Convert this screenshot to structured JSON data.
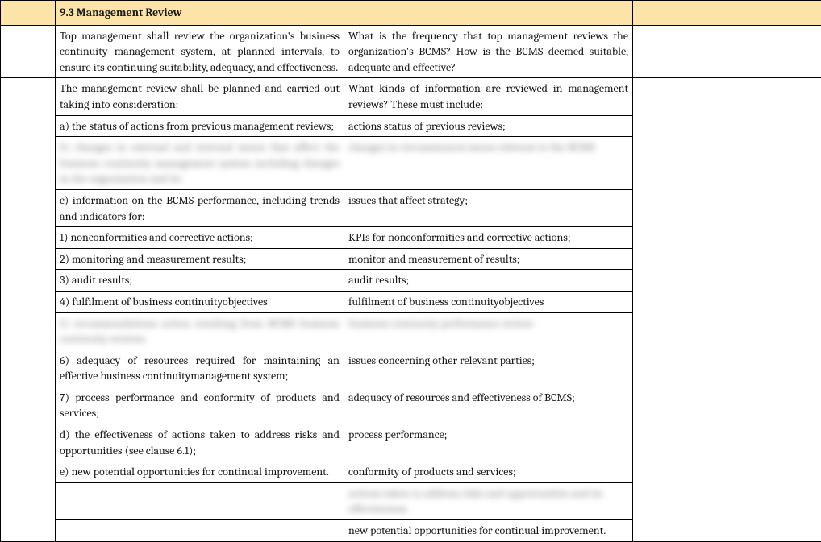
{
  "header": {
    "title": "9.3 Management Review"
  },
  "rows": [
    {
      "left": "Top management shall review the organization's business continuity management system, at planned intervals, to ensure its continuing suitability, adequacy, and effectiveness.",
      "right": "What is the frequency that top management reviews the organization's BCMS?  How is the BCMS deemed suitable, adequate and effective?",
      "leftJustify": true,
      "rightJustify": true
    },
    {
      "left": "The management review shall be planned and carried out taking into consideration:",
      "right": "What kinds of information are reviewed in management reviews? These must include:",
      "leftJustify": true,
      "rightJustify": true,
      "groupStart": true
    },
    {
      "left": "a) the status of actions from previous management reviews;",
      "right": "actions status of previous reviews;",
      "leftJustify": true
    },
    {
      "left": "b) changes in external and internal issues that affect the business continuity management system including changes in the organization and its",
      "right": "changes in circumstances issues relevant to the BCMS",
      "leftJustify": true,
      "blurred": true
    },
    {
      "left": "c) information on the BCMS performance, including trends and indicators for:",
      "right": "issues that affect strategy;",
      "leftJustify": true
    },
    {
      "left": "1) nonconformities and corrective actions;",
      "right": "KPIs for nonconformities and corrective actions;"
    },
    {
      "left": "2) monitoring and measurement results;",
      "right": "monitor and measurement of results;"
    },
    {
      "left": "3) audit results;",
      "right": "audit results;"
    },
    {
      "left": "4) fulfilment of business continuityobjectives",
      "right": "fulfilment of business continuityobjectives"
    },
    {
      "left": "5) recommendations action resulting from BCMS business continuity reviews",
      "right": "business continuity performance review",
      "leftJustify": true,
      "blurred": true
    },
    {
      "left": "6) adequacy of resources required for maintaining an effective business continuitymanagement system;",
      "right": "issues concerning other relevant parties;",
      "leftJustify": true
    },
    {
      "left": "7) process performance and conformity of products and services;",
      "right": "adequacy of resources and effectiveness of BCMS;",
      "leftJustify": true
    },
    {
      "left": "d) the effectiveness of actions taken to address risks and opportunities (see clause 6.1);",
      "right": "process performance;",
      "leftJustify": true
    },
    {
      "left": "e) new potential opportunities for continual improvement.",
      "right": "conformity of products and services;",
      "leftJustify": true
    },
    {
      "left": "",
      "right": "actions taken to address risks and opportunities and its effectiveness",
      "blurred": true
    },
    {
      "left": "",
      "right": "new potential opportunities for continual improvement.",
      "groupEnd": true
    }
  ],
  "style": {
    "header_bg": "#fce4a8",
    "border_color": "#000000",
    "font_family": "Cambria, Georgia, serif",
    "font_size": 14
  }
}
